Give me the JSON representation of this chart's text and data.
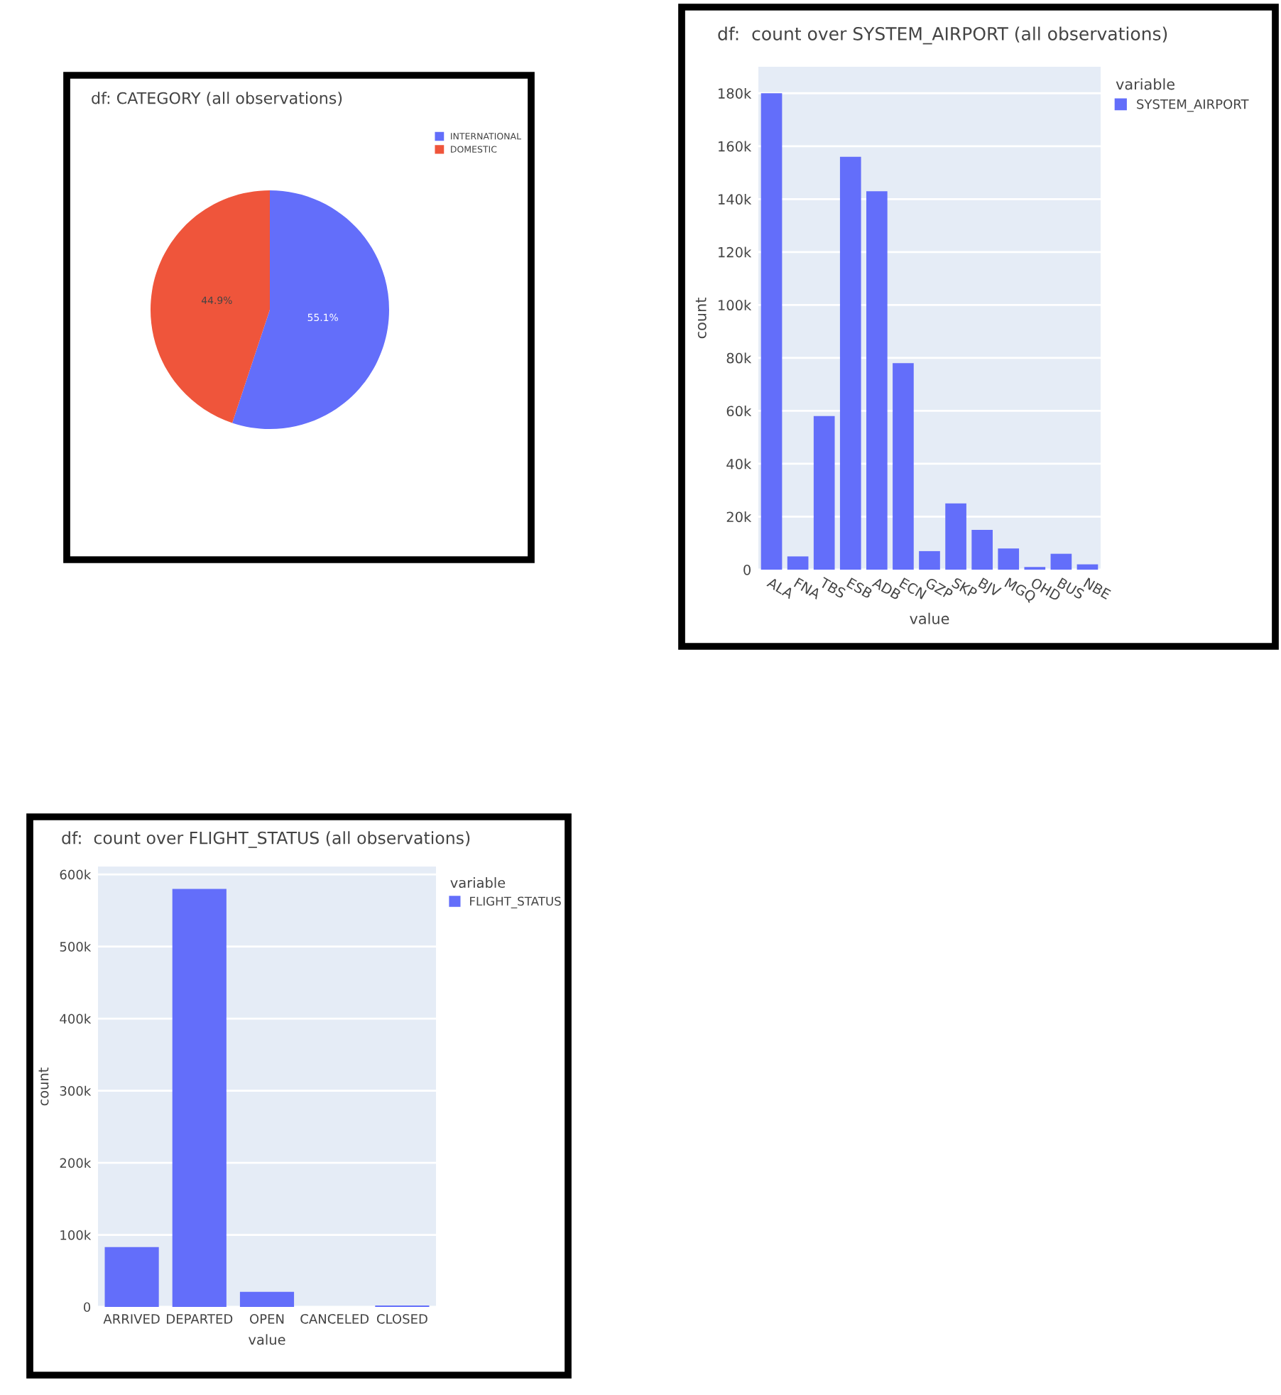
{
  "chart_data": [
    {
      "type": "pie",
      "title": "df: CATEGORY (all observations)",
      "categories": [
        "INTERNATIONAL",
        "DOMESTIC"
      ],
      "values": [
        55.1,
        44.9
      ],
      "colors": [
        "#636efa",
        "#ef553b"
      ],
      "value_labels": [
        "55.1%",
        "44.9%"
      ],
      "legend": "top right"
    },
    {
      "type": "bar",
      "title": "df:  count over SYSTEM_AIRPORT (all observations)",
      "xlabel": "value",
      "ylabel": "count",
      "legend_title": "variable",
      "categories": [
        "ALA",
        "FNA",
        "TBS",
        "ESB",
        "ADB",
        "ECN",
        "GZP",
        "SKP",
        "BJV",
        "MGQ",
        "OHD",
        "BUS",
        "NBE"
      ],
      "series": [
        {
          "name": "SYSTEM_AIRPORT",
          "color": "#636efa",
          "values": [
            180000,
            5000,
            58000,
            156000,
            143000,
            78000,
            7000,
            25000,
            15000,
            8000,
            1000,
            6000,
            2000
          ]
        }
      ],
      "ylim": [
        0,
        190000
      ],
      "yticks": [
        0,
        {
          "value": 20000,
          "label": "20k"
        },
        {
          "value": 40000,
          "label": "40k"
        },
        {
          "value": 60000,
          "label": "60k"
        },
        {
          "value": 80000,
          "label": "80k"
        },
        {
          "value": 100000,
          "label": "100k"
        },
        {
          "value": 120000,
          "label": "120k"
        },
        {
          "value": 140000,
          "label": "140k"
        },
        {
          "value": 160000,
          "label": "160k"
        },
        {
          "value": 180000,
          "label": "180k"
        }
      ],
      "grid": "y",
      "legend": "right"
    },
    {
      "type": "bar",
      "title": "df:  count over FLIGHT_STATUS (all observations)",
      "xlabel": "value",
      "ylabel": "count",
      "legend_title": "variable",
      "categories": [
        "ARRIVED",
        "DEPARTED",
        "OPEN",
        "CANCELED",
        "CLOSED"
      ],
      "series": [
        {
          "name": "FLIGHT_STATUS",
          "color": "#636efa",
          "values": [
            83000,
            580000,
            21000,
            0,
            2000
          ]
        }
      ],
      "ylim": [
        0,
        611000
      ],
      "yticks": [
        0,
        {
          "value": 100000,
          "label": "100k"
        },
        {
          "value": 200000,
          "label": "200k"
        },
        {
          "value": 300000,
          "label": "300k"
        },
        {
          "value": 400000,
          "label": "400k"
        },
        {
          "value": 500000,
          "label": "500k"
        },
        {
          "value": 600000,
          "label": "600k"
        }
      ],
      "grid": "y",
      "legend": "right"
    }
  ]
}
